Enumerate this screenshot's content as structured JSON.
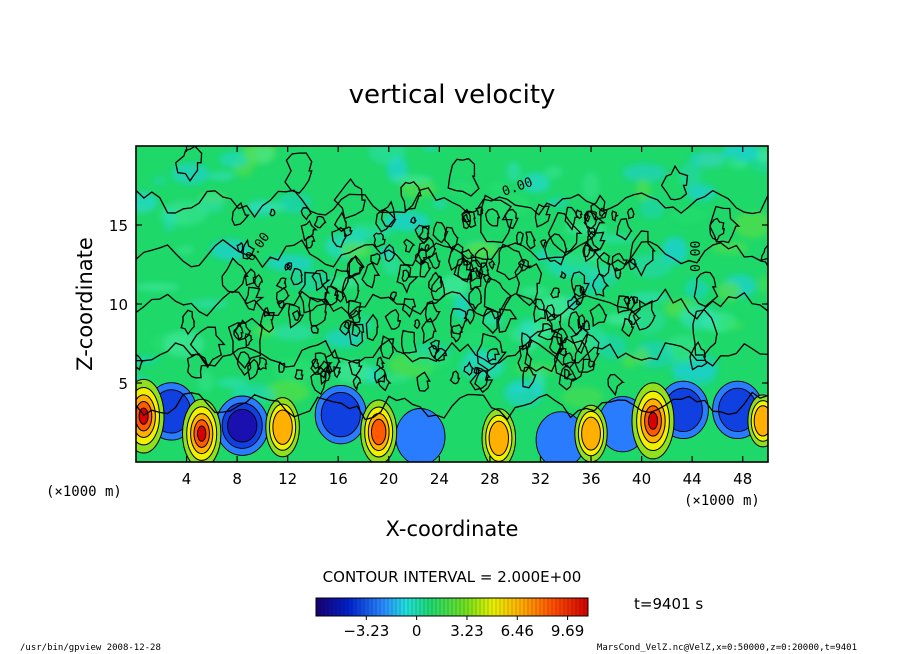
{
  "chart_data": {
    "type": "heatmap",
    "title": "vertical velocity",
    "xlabel": "X-coordinate",
    "ylabel": "Z-coordinate",
    "x_unit_label": "(×1000 m)",
    "y_unit_label": "(×1000 m)",
    "xlim": [
      0,
      50
    ],
    "ylim": [
      0,
      20
    ],
    "x_ticks": [
      4,
      8,
      12,
      16,
      20,
      24,
      28,
      32,
      36,
      40,
      44,
      48
    ],
    "y_ticks": [
      5,
      10,
      15
    ],
    "contour_interval_text": "CONTOUR INTERVAL = 2.000E+00",
    "contour_labels": [
      "0.00",
      "0.00",
      "0.00"
    ],
    "time_text": "t=9401 s",
    "colorbar": {
      "range": [
        -6.46,
        11.0
      ],
      "tick_values": [
        -3.23,
        0,
        3.23,
        6.46,
        9.69
      ],
      "tick_labels": [
        "−3.23",
        "0",
        "3.23",
        "6.46",
        "9.69"
      ]
    },
    "updrafts": [
      {
        "x": 0.6,
        "z": 2.9,
        "w": 9.5
      },
      {
        "x": 5.2,
        "z": 1.8,
        "w": 8.5
      },
      {
        "x": 11.6,
        "z": 2.2,
        "w": 6.5
      },
      {
        "x": 19.2,
        "z": 1.9,
        "w": 7.5
      },
      {
        "x": 28.7,
        "z": 1.5,
        "w": 6.5
      },
      {
        "x": 36.0,
        "z": 1.8,
        "w": 6.0
      },
      {
        "x": 40.9,
        "z": 2.6,
        "w": 10.0
      },
      {
        "x": 49.6,
        "z": 2.6,
        "w": 5.0
      }
    ],
    "downdrafts": [
      {
        "x": 2.8,
        "z": 3.2,
        "w": -3.5
      },
      {
        "x": 8.4,
        "z": 2.3,
        "w": -4.5
      },
      {
        "x": 16.2,
        "z": 3.0,
        "w": -4.0
      },
      {
        "x": 22.5,
        "z": 1.6,
        "w": -3.0
      },
      {
        "x": 33.6,
        "z": 1.4,
        "w": -3.0
      },
      {
        "x": 38.5,
        "z": 2.4,
        "w": -2.5
      },
      {
        "x": 43.3,
        "z": 3.3,
        "w": -3.5
      },
      {
        "x": 47.6,
        "z": 3.3,
        "w": -3.5
      }
    ]
  },
  "footer": {
    "left": "/usr/bin/gpview  2008-12-28",
    "right": "MarsCond_VelZ.nc@VelZ,x=0:50000,z=0:20000,t=9401"
  },
  "colors": {
    "background_field": "#1ed86a",
    "axis": "#000000"
  }
}
